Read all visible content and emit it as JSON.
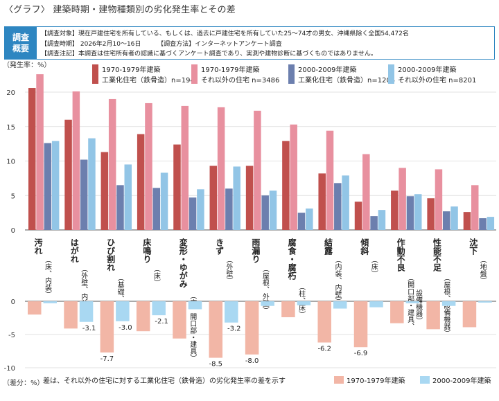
{
  "page": {
    "title": "〈グラフ〉 建築時期・建物種類別の劣化発生率とその差"
  },
  "survey": {
    "badge_line1": "調査",
    "badge_line2": "概要",
    "target": "【調査対象】現在戸建住宅を所有している、もしくは、過去に戸建住宅を所有していた25～74才の男女、沖縄県除く全国54,472名",
    "period_label": "【調査時期】 2026年2月10～16日",
    "method_label": "【調査方法】インターネットアンケート調査",
    "note": "【調査注記】本調査は住宅所有者の認識に基づくアンケート調査であり、実測や建物診断に基づくものではありません。"
  },
  "chart_data": [
    {
      "type": "bar",
      "ylabel": "（発生率：%）",
      "ylim": [
        0,
        23
      ],
      "yticks": [
        0,
        5,
        10,
        15,
        20
      ],
      "grid": true,
      "legend_position": "top-right",
      "categories": [
        {
          "main": "汚れ",
          "sub": "（床、内装）"
        },
        {
          "main": "はがれ",
          "sub": "（外壁、内装）"
        },
        {
          "main": "ひび割れ",
          "sub": "（基礎、外壁）"
        },
        {
          "main": "床鳴り",
          "sub": "（床）"
        },
        {
          "main": "変形・ゆがみ",
          "sub": "（床、開口部・建具）"
        },
        {
          "main": "きず",
          "sub": "（外壁）"
        },
        {
          "main": "雨漏り",
          "sub": "（屋根、外壁）"
        },
        {
          "main": "腐食・腐朽",
          "sub": "（柱、床）"
        },
        {
          "main": "結露",
          "sub": "（内装、内壁）"
        },
        {
          "main": "傾斜",
          "sub": "（床）"
        },
        {
          "main": "作動不良",
          "sub": "（開口部・建具、設備機器）"
        },
        {
          "main": "性能不足",
          "sub": "（屋根、設備機器）"
        },
        {
          "main": "沈下",
          "sub": "（地盤）"
        }
      ],
      "series": [
        {
          "name": "1970-1979年建築",
          "name2": "工業化住宅（鉄骨造）n=194",
          "color": "#c0504d",
          "values": [
            20.6,
            16.0,
            11.3,
            13.9,
            12.4,
            9.3,
            9.3,
            12.9,
            8.2,
            4.1,
            5.7,
            4.6,
            2.6
          ]
        },
        {
          "name": "1970-1979年建築",
          "name2": "それ以外の住宅 n=3486",
          "color": "#e8909f",
          "values": [
            22.6,
            20.1,
            19.0,
            18.4,
            18.0,
            17.8,
            17.3,
            15.3,
            14.4,
            11.0,
            9.0,
            8.8,
            6.5
          ]
        },
        {
          "name": "2000-2009年建築",
          "name2": "工業化住宅（鉄骨造）n=1204",
          "color": "#6c7fae",
          "values": [
            12.6,
            10.2,
            6.5,
            6.1,
            4.7,
            6.0,
            5.0,
            2.5,
            6.8,
            2.0,
            4.9,
            2.7,
            1.7
          ]
        },
        {
          "name": "2000-2009年建築",
          "name2": "それ以外の住宅 n=8201",
          "color": "#92c5e6",
          "values": [
            12.9,
            13.3,
            9.5,
            8.3,
            5.9,
            9.2,
            5.7,
            3.1,
            7.9,
            2.9,
            5.2,
            3.4,
            1.9
          ]
        }
      ]
    },
    {
      "type": "bar",
      "ylabel": "（差分：%）",
      "ylim": [
        -10,
        0
      ],
      "yticks": [
        0,
        -5,
        -10
      ],
      "grid": true,
      "legend_position": "bottom-right",
      "note": "差は、それ以外の住宅に対する工業化住宅（鉄骨造）の劣化発生率の差を示す",
      "series": [
        {
          "name": "1970-1979年建築",
          "color": "#f2b6a6",
          "values": [
            -2.0,
            -4.1,
            -7.7,
            -4.5,
            -5.6,
            -8.5,
            -8.0,
            -2.4,
            -6.2,
            -6.9,
            -3.3,
            -4.2,
            -3.9
          ],
          "labels": [
            "",
            "",
            "-7.7",
            "",
            "",
            "-8.5",
            "-8.0",
            "",
            "-6.2",
            "-6.9",
            "",
            "",
            ""
          ]
        },
        {
          "name": "2000-2009年建築",
          "color": "#a9d8f2",
          "values": [
            -0.3,
            -3.1,
            -3.0,
            -2.1,
            -1.2,
            -3.2,
            -0.7,
            -0.6,
            -1.1,
            -0.9,
            -0.3,
            -0.7,
            -0.2
          ],
          "labels": [
            "",
            "-3.1",
            "-3.0",
            "-2.1",
            "",
            "-3.2",
            "",
            "",
            "",
            "",
            "",
            "",
            ""
          ]
        }
      ]
    }
  ]
}
